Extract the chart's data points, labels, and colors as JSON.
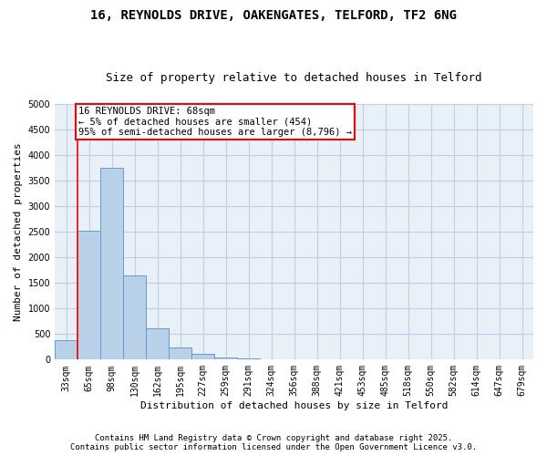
{
  "title": "16, REYNOLDS DRIVE, OAKENGATES, TELFORD, TF2 6NG",
  "subtitle": "Size of property relative to detached houses in Telford",
  "xlabel": "Distribution of detached houses by size in Telford",
  "ylabel": "Number of detached properties",
  "categories": [
    "33sqm",
    "65sqm",
    "98sqm",
    "130sqm",
    "162sqm",
    "195sqm",
    "227sqm",
    "259sqm",
    "291sqm",
    "324sqm",
    "356sqm",
    "388sqm",
    "421sqm",
    "453sqm",
    "485sqm",
    "518sqm",
    "550sqm",
    "582sqm",
    "614sqm",
    "647sqm",
    "679sqm"
  ],
  "values": [
    380,
    2520,
    3750,
    1650,
    620,
    230,
    110,
    50,
    15,
    10,
    5,
    3,
    2,
    1,
    1,
    0,
    0,
    0,
    0,
    0,
    0
  ],
  "bar_color": "#b8d0e8",
  "bar_edge_color": "#6699cc",
  "annotation_text": "16 REYNOLDS DRIVE: 68sqm\n← 5% of detached houses are smaller (454)\n95% of semi-detached houses are larger (8,796) →",
  "annotation_box_facecolor": "white",
  "annotation_box_edgecolor": "red",
  "ylim": [
    0,
    5000
  ],
  "yticks": [
    0,
    500,
    1000,
    1500,
    2000,
    2500,
    3000,
    3500,
    4000,
    4500,
    5000
  ],
  "grid_color": "#c0d0e0",
  "background_color": "#e8f0f8",
  "footer_text": "Contains HM Land Registry data © Crown copyright and database right 2025.\nContains public sector information licensed under the Open Government Licence v3.0.",
  "title_fontsize": 10,
  "subtitle_fontsize": 9,
  "annotation_fontsize": 7.5,
  "footer_fontsize": 6.5,
  "ylabel_fontsize": 8,
  "xlabel_fontsize": 8,
  "tick_fontsize": 7
}
